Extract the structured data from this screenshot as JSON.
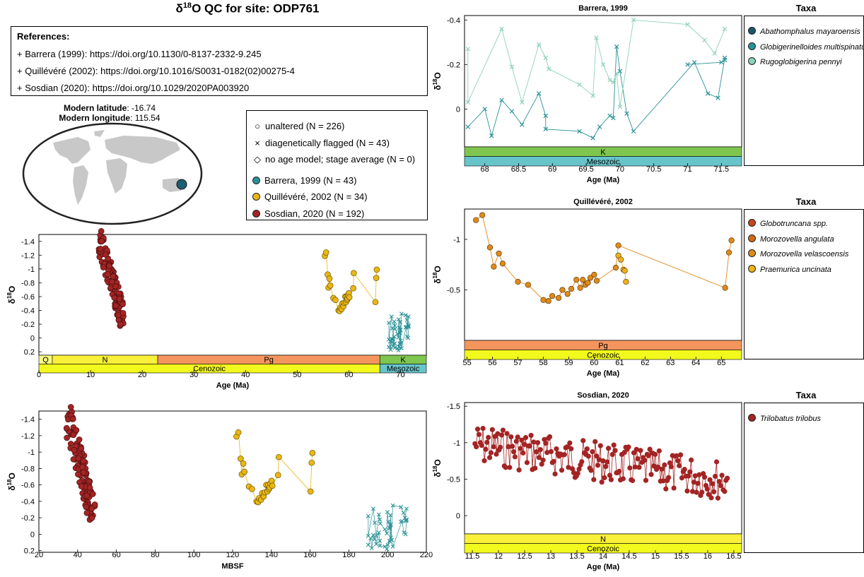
{
  "figure": {
    "title_main": "δ",
    "title_sup": "18",
    "title_rest": "O QC for site: ODP761"
  },
  "references": {
    "header": "References:",
    "lines": [
      "+ Barrera (1999): https://doi.org/10.1130/0-8137-2332-9.245",
      "+ Quillévéré (2002): https://doi.org/10.1016/S0031-0182(02)00275-4",
      "+ Sosdian (2020): https://doi.org/10.1029/2020PA003920"
    ]
  },
  "map": {
    "lat_label": "Modern latitude",
    "lat_value": ": -16.74",
    "lon_label": "Modern longitude",
    "lon_value": ": 115.54",
    "site_color": "#1f5f73"
  },
  "legend": {
    "unaltered": "unaltered (N = 226)",
    "flagged": "diagenetically flagged (N = 43)",
    "noage": "no age model; stage average (N = 0)",
    "barrera": "Barrera, 1999 (N = 43)",
    "quillevere": "Quillévéré, 2002 (N = 34)",
    "sosdian": "Sosdian, 2020 (N = 192)",
    "colors": {
      "barrera": "#2a9297",
      "quillevere": "#e9b714",
      "sosdian": "#a32424"
    }
  },
  "chart_data": [
    {
      "id": "age_all",
      "type": "scatter",
      "xlabel": "Age (Ma)",
      "ylabel": "δ18O",
      "xlim": [
        0,
        75
      ],
      "ylim": [
        -1.5,
        0.25
      ],
      "y_reversed": true,
      "xticks": [
        0,
        10,
        20,
        30,
        40,
        50,
        60,
        70
      ],
      "yticks": [
        -1.4,
        -1.2,
        -1,
        -0.8,
        -0.6,
        -0.4,
        -0.2,
        0,
        0.2
      ],
      "bands": {
        "epochs": [
          {
            "label": "Q",
            "from": 0,
            "to": 2.6,
            "color": "#f9f97f"
          },
          {
            "label": "N",
            "from": 2.6,
            "to": 23,
            "color": "#f9f03a"
          },
          {
            "label": "Pg",
            "from": 23,
            "to": 66,
            "color": "#f5955e"
          },
          {
            "label": "K",
            "from": 66,
            "to": 75,
            "color": "#7fc64e"
          }
        ],
        "eras": [
          {
            "label": "Cenozoic",
            "from": 0,
            "to": 66,
            "color": "#f2f91d"
          },
          {
            "label": "Mesozoic",
            "from": 66,
            "to": 75,
            "color": "#67c5ca"
          }
        ]
      }
    },
    {
      "id": "mbsf_all",
      "type": "scatter",
      "xlabel": "MBSF",
      "ylabel": "δ18O",
      "xlim": [
        20,
        220
      ],
      "ylim": [
        -1.5,
        0.22
      ],
      "y_reversed": true,
      "xticks": [
        20,
        40,
        60,
        80,
        100,
        120,
        140,
        160,
        180,
        200,
        220
      ],
      "yticks": [
        -1.4,
        -1.2,
        -1,
        -0.8,
        -0.6,
        -0.4,
        -0.2,
        0,
        0.2
      ]
    },
    {
      "id": "barrera",
      "type": "line",
      "title": "Barrera, 1999",
      "xlabel": "Age (Ma)",
      "ylabel": "δ18O",
      "xlim": [
        67.7,
        71.8
      ],
      "ylim": [
        -0.42,
        0.17
      ],
      "y_reversed": true,
      "xticks": [
        68,
        68.5,
        69,
        69.5,
        70,
        70.5,
        71,
        71.5
      ],
      "yticks": [
        -0.4,
        -0.2,
        0
      ],
      "bands": {
        "epochs": [
          {
            "label": "K",
            "from": 67.7,
            "to": 71.8,
            "color": "#7fc64e"
          }
        ],
        "eras": [
          {
            "label": "Mesozoic",
            "from": 67.7,
            "to": 71.8,
            "color": "#67c5ca"
          }
        ]
      },
      "series": [
        {
          "name": "Abathomphalus mayaroensis",
          "color": "#1b5668",
          "values": []
        },
        {
          "name": "Globigerinelloides multispinatus",
          "color": "#2a9297",
          "marker": "x",
          "x": [
            67.75,
            68.0,
            68.1,
            68.25,
            68.4,
            68.55,
            68.8,
            68.9,
            68.9,
            69.4,
            69.6,
            69.7,
            69.85,
            69.9,
            69.95,
            70.0,
            70.1,
            70.2,
            71.1,
            71.3,
            71.45,
            71.55,
            71.55,
            71.5,
            71.0
          ],
          "y": [
            0.08,
            0.0,
            0.12,
            -0.04,
            0.01,
            0.07,
            -0.07,
            0.03,
            0.09,
            0.1,
            0.13,
            0.08,
            0.03,
            0.04,
            -0.28,
            -0.17,
            0.02,
            0.1,
            -0.21,
            -0.07,
            -0.05,
            -0.23,
            -0.22,
            -0.21,
            -0.2
          ]
        },
        {
          "name": "Rugoglobigerina pennyi",
          "color": "#8ed0b8",
          "marker": "x",
          "x": [
            67.75,
            67.75,
            68.25,
            68.4,
            68.55,
            68.8,
            68.9,
            68.95,
            69.4,
            69.6,
            69.65,
            69.75,
            69.85,
            69.9,
            69.95,
            70.0,
            70.2,
            71.0,
            71.25,
            71.4,
            71.55
          ],
          "y": [
            -0.27,
            -0.03,
            -0.36,
            -0.19,
            -0.03,
            -0.29,
            -0.23,
            -0.18,
            -0.11,
            -0.06,
            -0.32,
            -0.2,
            -0.13,
            -0.12,
            -0.16,
            -0.01,
            -0.4,
            -0.38,
            -0.31,
            -0.25,
            -0.36
          ]
        }
      ]
    },
    {
      "id": "quillevere",
      "type": "line",
      "title": "Quillévéré, 2002",
      "xlabel": "Age (Ma)",
      "ylabel": "δ18O",
      "xlim": [
        54.9,
        65.8
      ],
      "ylim": [
        -1.3,
        0.0
      ],
      "y_reversed": true,
      "xticks": [
        55,
        56,
        57,
        58,
        59,
        60,
        61,
        62,
        63,
        64,
        65
      ],
      "yticks": [
        -1,
        -0.5
      ],
      "bands": {
        "epochs": [
          {
            "label": "Pg",
            "from": 54.9,
            "to": 65.8,
            "color": "#f5955e"
          }
        ],
        "eras": [
          {
            "label": "Cenozoic",
            "from": 54.9,
            "to": 65.8,
            "color": "#f2f91d"
          }
        ]
      },
      "series": [
        {
          "name": "Globotruncana spp.",
          "color": "#c8431d",
          "values": []
        },
        {
          "name": "Morozovella angulata",
          "color": "#d06a18",
          "values": []
        },
        {
          "name": "Morozovella velascoensis",
          "color": "#e08a1a",
          "x": [
            55.35,
            55.6,
            55.9,
            56.05,
            56.25,
            56.4,
            57.0,
            57.4,
            58.0,
            58.2,
            58.35,
            58.6,
            58.75,
            58.95,
            59.1,
            59.3,
            59.45,
            59.55,
            59.65,
            59.75,
            59.85,
            60.0,
            60.1,
            60.85,
            60.95,
            65.15,
            65.3,
            65.4
          ],
          "y": [
            -1.19,
            -1.24,
            -0.92,
            -0.73,
            -0.86,
            -0.76,
            -0.58,
            -0.55,
            -0.4,
            -0.39,
            -0.44,
            -0.42,
            -0.5,
            -0.46,
            -0.51,
            -0.6,
            -0.52,
            -0.6,
            -0.55,
            -0.57,
            -0.62,
            -0.65,
            -0.59,
            -0.72,
            -0.94,
            -0.52,
            -0.87,
            -0.99
          ]
        },
        {
          "name": "Praemurica uncinata",
          "color": "#f0b21b",
          "x": [
            60.95,
            61.05,
            61.15,
            61.2,
            61.25
          ],
          "y": [
            -0.84,
            -0.8,
            -0.7,
            -0.69,
            -0.58
          ]
        }
      ]
    },
    {
      "id": "sosdian",
      "type": "line",
      "title": "Sosdian, 2020",
      "xlabel": "Age (Ma)",
      "ylabel": "δ18O",
      "xlim": [
        11.35,
        16.65
      ],
      "ylim": [
        -1.55,
        0.25
      ],
      "y_reversed": true,
      "xticks": [
        11.5,
        12,
        12.5,
        13,
        13.5,
        14,
        14.5,
        15,
        15.5,
        16,
        16.5
      ],
      "yticks": [
        -1.5,
        -1,
        -0.5,
        0
      ],
      "bands": {
        "epochs": [
          {
            "label": "N",
            "from": 11.35,
            "to": 16.65,
            "color": "#f9f03a"
          }
        ],
        "eras": [
          {
            "label": "Cenozoic",
            "from": 11.35,
            "to": 16.65,
            "color": "#f2f91d"
          }
        ]
      },
      "series": [
        {
          "name": "Trilobatus trilobus",
          "color": "#a32424",
          "values": []
        }
      ]
    }
  ],
  "taxa_header": "Taxa"
}
